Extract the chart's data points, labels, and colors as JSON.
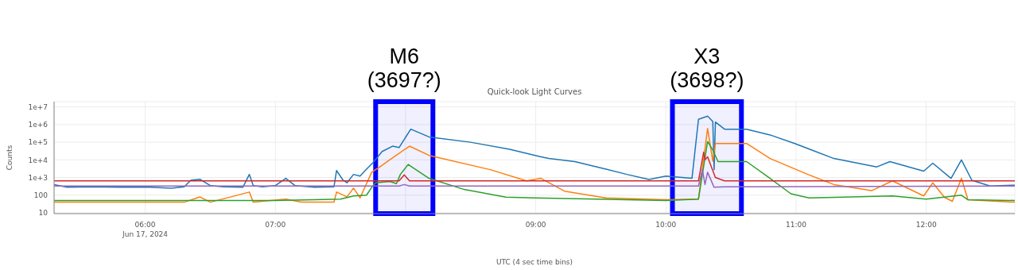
{
  "chart_data": {
    "type": "line",
    "title": "Quick-look Light Curves",
    "xlabel": "UTC (4 sec time bins)",
    "ylabel": "Counts",
    "log": "y",
    "grid": true,
    "legend": false,
    "marker": "none",
    "line_style": "solid",
    "xlim": [
      5.3,
      12.68
    ],
    "xticks": [
      {
        "value": 6,
        "label": "06:00\nJun 17, 2024"
      },
      {
        "value": 7,
        "label": "07:00"
      },
      {
        "value": 8,
        "label": null
      },
      {
        "value": 9,
        "label": "09:00"
      },
      {
        "value": 10,
        "label": "10:00"
      },
      {
        "value": 11,
        "label": "11:00"
      },
      {
        "value": 12,
        "label": "12:00"
      }
    ],
    "ylim": [
      9,
      20000000
    ],
    "yticks": [
      10,
      100,
      {
        "value": 1000,
        "label": "1e+3"
      },
      {
        "value": 10000,
        "label": "1e+4"
      },
      {
        "value": 100000,
        "label": "1e+5"
      },
      {
        "value": 1000000,
        "label": "1e+6"
      },
      {
        "value": 10000000,
        "label": "1e+7"
      }
    ],
    "bands": [
      {
        "axis": "x",
        "from": 7.77,
        "to": 8.21,
        "label": "M6\n(3697?)",
        "color": "#0000ff"
      },
      {
        "axis": "x",
        "from": 10.05,
        "to": 10.58,
        "label": "X3\n(3698?)",
        "color": "#0000ff"
      }
    ],
    "series": [
      {
        "color": "#1f77b4",
        "x": [
          5.3,
          5.4,
          5.6,
          5.8,
          6.0,
          6.2,
          6.3,
          6.35,
          6.42,
          6.5,
          6.6,
          6.75,
          6.8,
          6.83,
          6.9,
          7.0,
          7.08,
          7.15,
          7.3,
          7.45,
          7.47,
          7.52,
          7.55,
          7.6,
          7.65,
          7.7,
          7.75,
          7.82,
          7.9,
          7.95,
          8.04,
          8.18,
          8.5,
          8.8,
          9.04,
          9.1,
          9.3,
          9.54,
          9.7,
          9.87,
          10.0,
          10.2,
          10.25,
          10.32,
          10.36,
          10.37,
          10.38,
          10.45,
          10.62,
          10.8,
          10.99,
          11.29,
          11.62,
          11.72,
          11.98,
          12.05,
          12.19,
          12.27,
          12.35,
          12.49,
          12.68
        ],
        "values": [
          400,
          280,
          300,
          280,
          290,
          250,
          300,
          700,
          800,
          350,
          300,
          280,
          1500,
          350,
          300,
          350,
          900,
          350,
          280,
          300,
          2500,
          700,
          500,
          1500,
          1200,
          3000,
          7000,
          30000,
          60000,
          50000,
          550000,
          200000,
          100000,
          40000,
          15000,
          12000,
          8000,
          3000,
          1500,
          780,
          1200,
          900,
          2000000,
          3000000,
          1500000,
          2800,
          1400000,
          550000,
          550000,
          260000,
          85000,
          12000,
          4000,
          8000,
          2300,
          6500,
          900,
          10000,
          700,
          330,
          370
        ]
      },
      {
        "color": "#ff7f0e",
        "x": [
          5.3,
          5.8,
          6.3,
          6.42,
          6.5,
          6.8,
          6.83,
          7.08,
          7.2,
          7.45,
          7.47,
          7.55,
          7.6,
          7.65,
          7.74,
          7.82,
          7.86,
          8.03,
          8.18,
          8.65,
          8.93,
          9.04,
          9.22,
          9.54,
          10.0,
          10.25,
          10.32,
          10.36,
          10.38,
          10.62,
          10.8,
          11.09,
          11.29,
          11.58,
          11.74,
          11.98,
          12.05,
          12.14,
          12.2,
          12.27,
          12.32,
          12.68
        ],
        "values": [
          40,
          40,
          40,
          80,
          40,
          150,
          40,
          60,
          40,
          40,
          150,
          80,
          250,
          70,
          2000,
          5000,
          8000,
          60000,
          18000,
          2800,
          650,
          900,
          170,
          70,
          55,
          60,
          600000,
          8500,
          85000,
          85000,
          12000,
          1500,
          400,
          180,
          650,
          90,
          500,
          75,
          45,
          900,
          55,
          40
        ]
      },
      {
        "color": "#2ca02c",
        "x": [
          5.3,
          6.0,
          7.0,
          7.5,
          7.6,
          7.7,
          7.74,
          7.77,
          7.88,
          7.93,
          7.96,
          8.02,
          8.18,
          8.45,
          8.77,
          9.0,
          10.0,
          10.25,
          10.32,
          10.36,
          10.4,
          10.62,
          10.8,
          10.96,
          11.1,
          11.74,
          12.0,
          12.27,
          12.32,
          12.68
        ],
        "values": [
          50,
          50,
          50,
          60,
          90,
          100,
          280,
          500,
          600,
          450,
          1500,
          5500,
          900,
          210,
          78,
          70,
          50,
          60,
          110000,
          36000,
          8000,
          8000,
          900,
          120,
          70,
          90,
          60,
          100,
          55,
          50
        ]
      },
      {
        "color": "#d62728",
        "x": [
          5.3,
          7.95,
          7.99,
          8.03,
          10.25,
          10.29,
          10.3,
          10.32,
          10.38,
          10.45,
          12.68
        ],
        "values": [
          650,
          650,
          1400,
          650,
          650,
          28000,
          10000,
          15000,
          1000,
          650,
          650
        ]
      },
      {
        "color": "#9467bd",
        "x": [
          5.3,
          7.95,
          7.99,
          8.03,
          10.25,
          10.28,
          10.3,
          10.32,
          10.37,
          10.45,
          12.68
        ],
        "values": [
          330,
          330,
          400,
          330,
          330,
          2800,
          400,
          2000,
          280,
          300,
          330
        ]
      }
    ]
  }
}
